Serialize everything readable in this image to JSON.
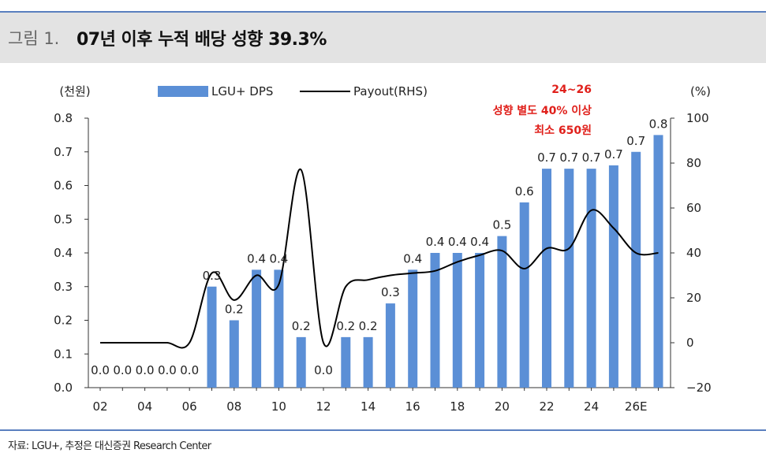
{
  "header": {
    "figure_label": "그림 1.",
    "title": "07년 이후 누적 배당 성향 39.3%"
  },
  "source": "자료: LGU+, 추정은 대신증권 Research Center",
  "chart_data": {
    "type": "bar+line",
    "y_left_unit": "(천원)",
    "y_right_unit": "(%)",
    "y_left_ticks": [
      "0.0",
      "0.1",
      "0.2",
      "0.3",
      "0.4",
      "0.5",
      "0.6",
      "0.7",
      "0.8"
    ],
    "y_right_ticks": [
      "−20",
      "0",
      "20",
      "40",
      "60",
      "80",
      "100"
    ],
    "ylim_left": [
      0,
      0.8
    ],
    "ylim_right": [
      -20,
      100
    ],
    "x_ticks": [
      "02",
      "04",
      "06",
      "08",
      "10",
      "12",
      "14",
      "16",
      "18",
      "20",
      "22",
      "24",
      "26E"
    ],
    "categories": [
      "02",
      "03",
      "04",
      "05",
      "06",
      "07",
      "08",
      "09",
      "10",
      "11",
      "12",
      "13",
      "14",
      "15",
      "16",
      "17",
      "18",
      "19",
      "20",
      "21",
      "22",
      "23",
      "24",
      "25",
      "26E",
      "27E"
    ],
    "series": [
      {
        "name": "LGU+ DPS",
        "kind": "bar",
        "color": "#5b8fd6",
        "values": [
          0,
          0,
          0,
          0,
          0,
          0.3,
          0.2,
          0.35,
          0.35,
          0.15,
          0,
          0.15,
          0.15,
          0.25,
          0.35,
          0.4,
          0.4,
          0.4,
          0.45,
          0.55,
          0.65,
          0.65,
          0.65,
          0.66,
          0.7,
          0.75
        ],
        "labels": [
          "0.0",
          "0.0",
          "0.0",
          "0.0",
          "0.0",
          "0.3",
          "0.2",
          "0.4",
          "0.4",
          "0.2",
          "0.0",
          "0.2",
          "0.2",
          "0.3",
          "0.4",
          "0.4",
          "0.4",
          "0.4",
          "0.5",
          "0.6",
          "0.7",
          "0.7",
          "0.7",
          "0.7",
          "0.7",
          "0.8"
        ]
      },
      {
        "name": "Payout(RHS)",
        "kind": "line",
        "color": "#000000",
        "values": [
          0,
          0,
          0,
          0,
          0,
          31,
          19,
          30,
          26,
          77,
          0,
          25,
          28,
          30,
          31,
          32,
          36,
          39,
          41,
          33,
          42,
          42,
          59,
          51,
          40,
          40
        ]
      }
    ],
    "annotation": [
      "24~26",
      "성향 별도 40% 이상",
      "최소 650원"
    ],
    "annotation_color": "#e0201b"
  }
}
